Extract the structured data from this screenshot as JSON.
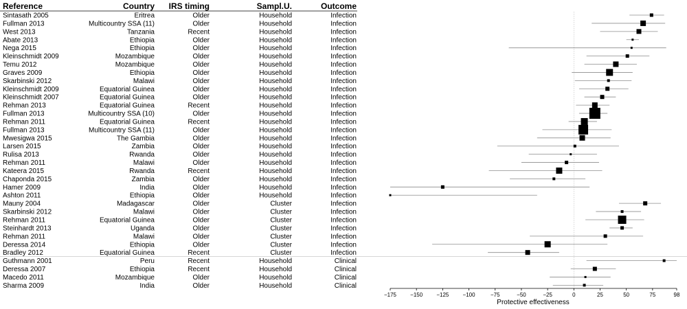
{
  "chart_data": {
    "type": "forest",
    "columns": [
      "Reference",
      "Country",
      "IRS timing",
      "Sampl.U.",
      "Outcome"
    ],
    "xlabel": "Protective effectiveness",
    "xlim": [
      -175,
      98
    ],
    "xticks": [
      -175,
      -150,
      -125,
      -100,
      -75,
      -50,
      -25,
      0,
      25,
      50,
      75,
      98
    ],
    "xtick_labels": [
      "−175",
      "−150",
      "−125",
      "−100",
      "−75",
      "−50",
      "−25",
      "0",
      "25",
      "50",
      "75",
      "98"
    ],
    "reference_line": 0,
    "separator_after_row": 30,
    "rows": [
      {
        "reference": "Sintasath 2005",
        "country": "Eritrea",
        "timing": "Older",
        "unit": "Household",
        "outcome": "Infection",
        "est": 74,
        "lo": 53,
        "hi": 86,
        "weight": 3
      },
      {
        "reference": "Fullman 2013",
        "country": "Multicountry SSA (11)",
        "timing": "Older",
        "unit": "Household",
        "outcome": "Infection",
        "est": 66,
        "lo": 17,
        "hi": 87,
        "weight": 6
      },
      {
        "reference": "West 2013",
        "country": "Tanzania",
        "timing": "Recent",
        "unit": "Household",
        "outcome": "Infection",
        "est": 62,
        "lo": 25,
        "hi": 80,
        "weight": 5
      },
      {
        "reference": "Abate 2013",
        "country": "Ethiopia",
        "timing": "Older",
        "unit": "Household",
        "outcome": "Infection",
        "est": 56,
        "lo": 50,
        "hi": 62,
        "weight": 1
      },
      {
        "reference": "Nega 2015",
        "country": "Ethiopia",
        "timing": "Older",
        "unit": "Household",
        "outcome": "Infection",
        "est": 55,
        "lo": -62,
        "hi": 88,
        "weight": 1
      },
      {
        "reference": "Kleinschmidt 2009",
        "country": "Mozambique",
        "timing": "Older",
        "unit": "Household",
        "outcome": "Infection",
        "est": 51,
        "lo": 12,
        "hi": 72,
        "weight": 3
      },
      {
        "reference": "Temu 2012",
        "country": "Mozambique",
        "timing": "Older",
        "unit": "Household",
        "outcome": "Infection",
        "est": 40,
        "lo": 10,
        "hi": 60,
        "weight": 6
      },
      {
        "reference": "Graves 2009",
        "country": "Ethiopia",
        "timing": "Older",
        "unit": "Household",
        "outcome": "Infection",
        "est": 34,
        "lo": -2,
        "hi": 56,
        "weight": 8
      },
      {
        "reference": "Skarbinski 2012",
        "country": "Malawi",
        "timing": "Older",
        "unit": "Household",
        "outcome": "Infection",
        "est": 33,
        "lo": 1,
        "hi": 55,
        "weight": 2
      },
      {
        "reference": "Kleinschmidt 2009",
        "country": "Equatorial Guinea",
        "timing": "Older",
        "unit": "Household",
        "outcome": "Infection",
        "est": 32,
        "lo": 5,
        "hi": 52,
        "weight": 4
      },
      {
        "reference": "Kleinschmidt 2007",
        "country": "Equatorial Guinea",
        "timing": "Older",
        "unit": "Household",
        "outcome": "Infection",
        "est": 27,
        "lo": 10,
        "hi": 40,
        "weight": 4
      },
      {
        "reference": "Rehman 2013",
        "country": "Equatorial Guinea",
        "timing": "Recent",
        "unit": "Household",
        "outcome": "Infection",
        "est": 20,
        "lo": 2,
        "hi": 34,
        "weight": 6
      },
      {
        "reference": "Fullman 2013",
        "country": "Multicountry SSA (10)",
        "timing": "Older",
        "unit": "Household",
        "outcome": "Infection",
        "est": 20,
        "lo": 5,
        "hi": 32,
        "weight": 14
      },
      {
        "reference": "Rehman 2011",
        "country": "Equatorial Guinea",
        "timing": "Recent",
        "unit": "Household",
        "outcome": "Infection",
        "est": 10,
        "lo": -5,
        "hi": 22,
        "weight": 8
      },
      {
        "reference": "Fullman 2013",
        "country": "Multicountry SSA (11)",
        "timing": "Older",
        "unit": "Household",
        "outcome": "Infection",
        "est": 9,
        "lo": -30,
        "hi": 36,
        "weight": 12
      },
      {
        "reference": "Mwesigwa 2015",
        "country": "The Gambia",
        "timing": "Older",
        "unit": "Household",
        "outcome": "Infection",
        "est": 8,
        "lo": -35,
        "hi": 35,
        "weight": 6
      },
      {
        "reference": "Larsen 2015",
        "country": "Zambia",
        "timing": "Older",
        "unit": "Household",
        "outcome": "Infection",
        "est": 1,
        "lo": -73,
        "hi": 43,
        "weight": 2
      },
      {
        "reference": "Rulisa 2013",
        "country": "Rwanda",
        "timing": "Older",
        "unit": "Household",
        "outcome": "Infection",
        "est": -3,
        "lo": -43,
        "hi": 22,
        "weight": 1
      },
      {
        "reference": "Rehman 2011",
        "country": "Malawi",
        "timing": "Older",
        "unit": "Household",
        "outcome": "Infection",
        "est": -7,
        "lo": -50,
        "hi": 24,
        "weight": 3
      },
      {
        "reference": "Kateera 2015",
        "country": "Rwanda",
        "timing": "Recent",
        "unit": "Household",
        "outcome": "Infection",
        "est": -14,
        "lo": -81,
        "hi": 27,
        "weight": 7
      },
      {
        "reference": "Chaponda 2015",
        "country": "Zambia",
        "timing": "Older",
        "unit": "Household",
        "outcome": "Infection",
        "est": -19,
        "lo": -61,
        "hi": 11,
        "weight": 2
      },
      {
        "reference": "Hamer 2009",
        "country": "India",
        "timing": "Older",
        "unit": "Household",
        "outcome": "Infection",
        "est": -125,
        "lo": -175,
        "hi": 15,
        "weight": 3
      },
      {
        "reference": "Ashton 2011",
        "country": "Ethiopia",
        "timing": "Older",
        "unit": "Household",
        "outcome": "Infection",
        "est": -175,
        "lo": -175,
        "hi": -35,
        "weight": 1
      },
      {
        "reference": "Mauny 2004",
        "country": "Madagascar",
        "timing": "Older",
        "unit": "Cluster",
        "outcome": "Infection",
        "est": 68,
        "lo": 43,
        "hi": 83,
        "weight": 4
      },
      {
        "reference": "Skarbinski 2012",
        "country": "Malawi",
        "timing": "Older",
        "unit": "Cluster",
        "outcome": "Infection",
        "est": 46,
        "lo": 21,
        "hi": 64,
        "weight": 2
      },
      {
        "reference": "Rehman 2011",
        "country": "Equatorial Guinea",
        "timing": "Older",
        "unit": "Cluster",
        "outcome": "Infection",
        "est": 46,
        "lo": 11,
        "hi": 67,
        "weight": 10
      },
      {
        "reference": "Steinhardt 2013",
        "country": "Uganda",
        "timing": "Older",
        "unit": "Cluster",
        "outcome": "Infection",
        "est": 46,
        "lo": 34,
        "hi": 56,
        "weight": 3
      },
      {
        "reference": "Rehman 2011",
        "country": "Malawi",
        "timing": "Older",
        "unit": "Cluster",
        "outcome": "Infection",
        "est": 30,
        "lo": -42,
        "hi": 66,
        "weight": 3
      },
      {
        "reference": "Deressa 2014",
        "country": "Ethiopia",
        "timing": "Older",
        "unit": "Cluster",
        "outcome": "Infection",
        "est": -25,
        "lo": -135,
        "hi": 32,
        "weight": 7
      },
      {
        "reference": "Bradley 2012",
        "country": "Equatorial Guinea",
        "timing": "Recent",
        "unit": "Cluster",
        "outcome": "Infection",
        "est": -44,
        "lo": -82,
        "hi": -14,
        "weight": 5
      },
      {
        "reference": "Guthmann 2001",
        "country": "Peru",
        "timing": "Recent",
        "unit": "Household",
        "outcome": "Clinical",
        "est": 86,
        "lo": 12,
        "hi": 98,
        "weight": 2
      },
      {
        "reference": "Deressa 2007",
        "country": "Ethiopia",
        "timing": "Recent",
        "unit": "Household",
        "outcome": "Clinical",
        "est": 20,
        "lo": -3,
        "hi": 40,
        "weight": 4
      },
      {
        "reference": "Macedo 2011",
        "country": "Mozambique",
        "timing": "Older",
        "unit": "Household",
        "outcome": "Clinical",
        "est": 11,
        "lo": -23,
        "hi": 35,
        "weight": 1
      },
      {
        "reference": "Sharma 2009",
        "country": "India",
        "timing": "Older",
        "unit": "Household",
        "outcome": "Clinical",
        "est": 10,
        "lo": -20,
        "hi": 28,
        "weight": 2
      }
    ],
    "colors": {
      "marker": "#000000",
      "ci_line": "#8c8c8c",
      "zero_line": "#bdbdbd",
      "separator": "#bdbdbd"
    }
  }
}
